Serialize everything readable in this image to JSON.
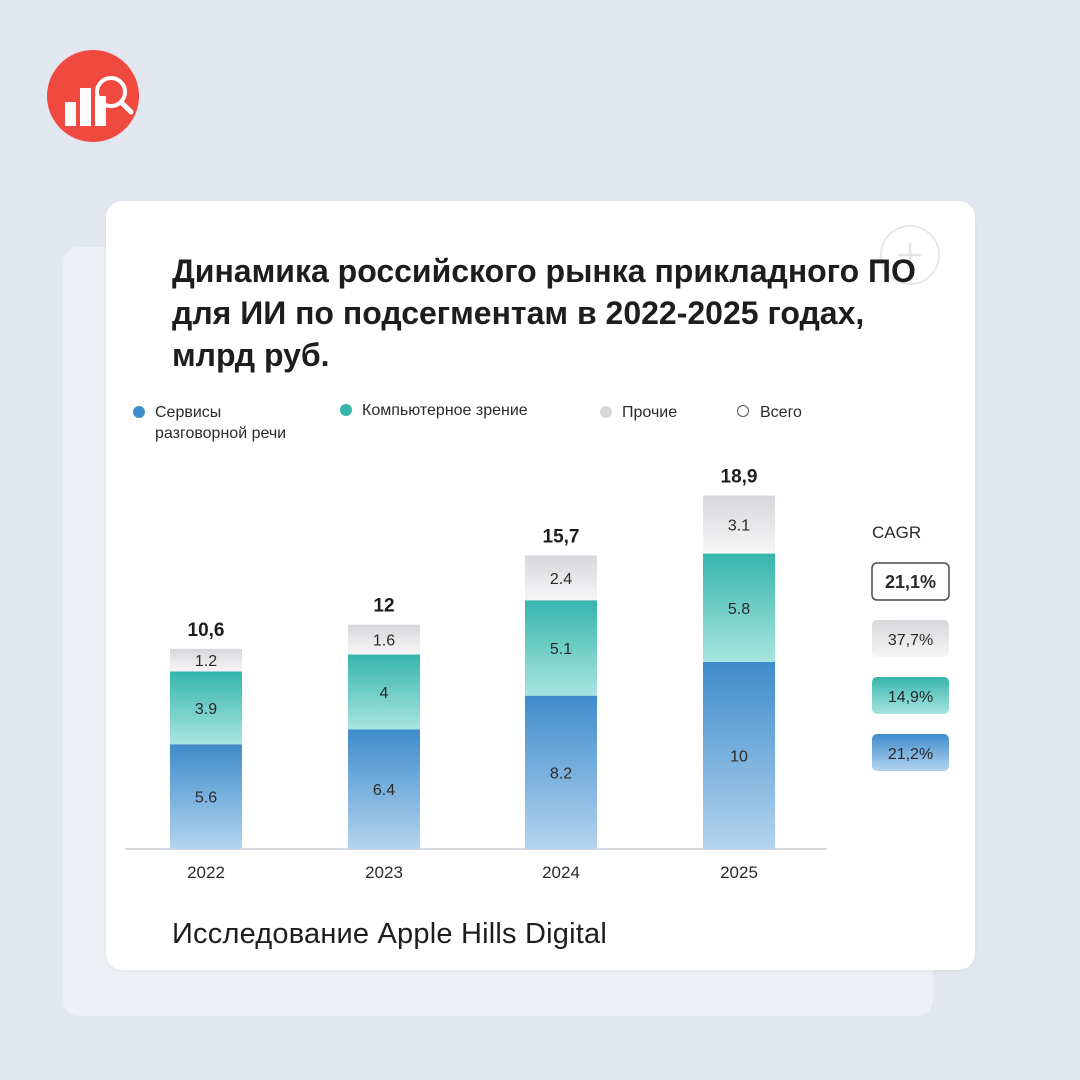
{
  "title": "Динамика российского рынка прикладного ПО для ИИ по подсегментам в 2022-2025 годах, млрд руб.",
  "footer": "Исследование Apple Hills Digital",
  "logo_icon": "chart-magnifier-icon",
  "plus_icon": "plus-icon",
  "colors": {
    "accent": "#f0493f",
    "voice": "#3f8ccc",
    "vision": "#35b5ad",
    "other": "#d6d7da"
  },
  "legend": [
    {
      "label": "Сервисы",
      "label2": "разговорной речи",
      "color": "#3f8ccc"
    },
    {
      "label": "Компьютерное зрение",
      "label2": "",
      "color": "#35b5ad"
    },
    {
      "label": "Прочие",
      "label2": "",
      "color": "#d6d7da"
    },
    {
      "label": "Всего",
      "label2": "",
      "color": "none"
    }
  ],
  "chart_data": {
    "type": "bar",
    "stacked": true,
    "categories": [
      "2022",
      "2023",
      "2024",
      "2025"
    ],
    "series": [
      {
        "name": "Сервисы разговорной речи",
        "values": [
          5.6,
          6.4,
          8.2,
          10
        ],
        "labels": [
          "5.6",
          "6.4",
          "8.2",
          "10"
        ],
        "color": "#3f8ccc"
      },
      {
        "name": "Компьютерное зрение",
        "values": [
          3.9,
          4,
          5.1,
          5.8
        ],
        "labels": [
          "3.9",
          "4",
          "5.1",
          "5.8"
        ],
        "color": "#35b5ad"
      },
      {
        "name": "Прочие",
        "values": [
          1.2,
          1.6,
          2.4,
          3.1
        ],
        "labels": [
          "1.2",
          "1.6",
          "2.4",
          "3.1"
        ],
        "color": "#d6d7da"
      }
    ],
    "totals": [
      "10,6",
      "12",
      "15,7",
      "18,9"
    ],
    "cagr_label": "CAGR",
    "cagr": [
      {
        "name": "Всего",
        "label": "21,1%"
      },
      {
        "name": "Прочие",
        "label": "37,7%"
      },
      {
        "name": "Компьютерное зрение",
        "label": "14,9%"
      },
      {
        "name": "Сервисы разговорной речи",
        "label": "21,2%"
      }
    ],
    "ylim": [
      0,
      19
    ],
    "grid": false,
    "legend_position": "top"
  }
}
